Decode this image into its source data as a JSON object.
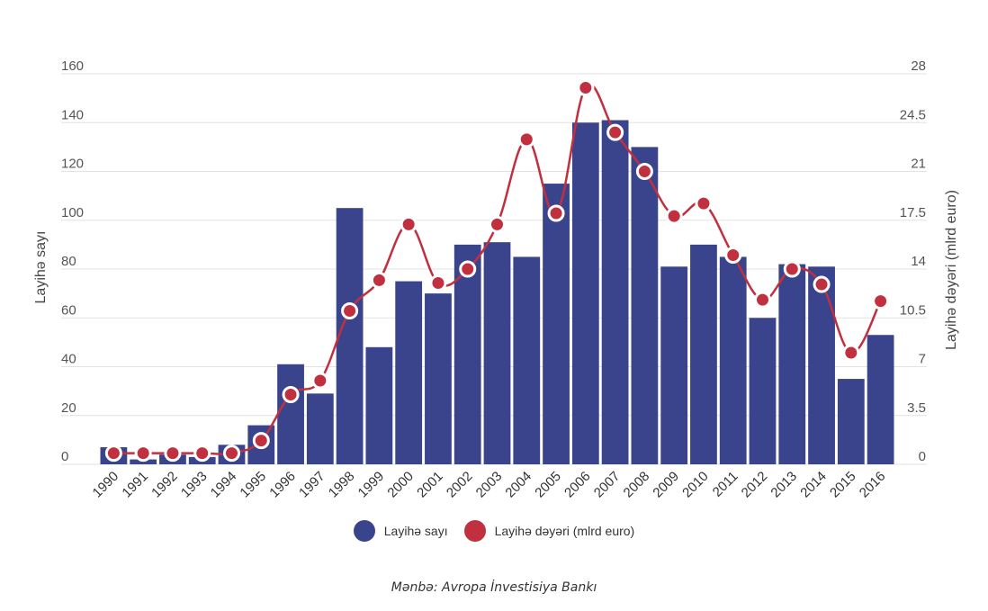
{
  "chart_data": {
    "type": "bar",
    "categories": [
      "1990",
      "1991",
      "1992",
      "1993",
      "1994",
      "1995",
      "1996",
      "1997",
      "1998",
      "1999",
      "2000",
      "2001",
      "2002",
      "2003",
      "2004",
      "2005",
      "2006",
      "2007",
      "2008",
      "2009",
      "2010",
      "2011",
      "2012",
      "2013",
      "2014",
      "2015",
      "2016"
    ],
    "series": [
      {
        "name": "Layihə sayı",
        "type": "bar",
        "axis": "left",
        "color": "#3a448c",
        "values": [
          7,
          2,
          4,
          3,
          8,
          16,
          41,
          29,
          105,
          48,
          75,
          70,
          90,
          91,
          85,
          115,
          140,
          141,
          130,
          81,
          90,
          85,
          60,
          82,
          81,
          35,
          53
        ]
      },
      {
        "name": "Layihə dəyəri (mlrd euro)",
        "type": "line",
        "axis": "right",
        "color": "#c0303f",
        "values": [
          0.8,
          0.8,
          0.8,
          0.8,
          0.8,
          1.7,
          5.0,
          6.0,
          11.0,
          13.2,
          17.2,
          13.0,
          14.0,
          17.2,
          23.3,
          18.0,
          27.0,
          23.8,
          21.0,
          17.8,
          18.7,
          15.0,
          11.8,
          14.0,
          12.9,
          8.0,
          11.7
        ]
      }
    ],
    "ylabel_left": "Layihə sayı",
    "ylabel_right": "Layihə dəyəri (mlrd euro)",
    "ylim_left": [
      0,
      160
    ],
    "ylim_right": [
      0,
      28
    ],
    "yticks_left": [
      "0",
      "20",
      "40",
      "60",
      "80",
      "100",
      "120",
      "140",
      "160"
    ],
    "yticks_right": [
      "0",
      "3.5",
      "7",
      "10.5",
      "14",
      "17.5",
      "21",
      "24.5",
      "28"
    ],
    "grid": true,
    "legend_position": "bottom-center"
  },
  "legend": {
    "bar_label": "Layihə sayı",
    "line_label": "Layihə dəyəri (mlrd euro)",
    "bar_color": "#3a448c",
    "line_color": "#c0303f"
  },
  "source": "Mənbə: Avropa İnvestisiya Bankı"
}
